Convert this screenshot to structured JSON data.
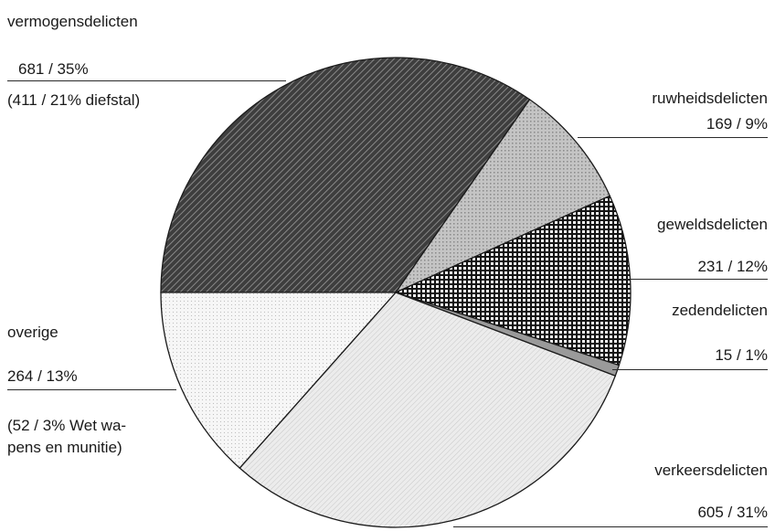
{
  "chart_data": {
    "type": "pie",
    "title": "",
    "slices": [
      {
        "label": "vermogensdelicten",
        "value_text": "681 / 35%",
        "note": "(411 / 21% diefstal)",
        "count": 681,
        "percent": 35,
        "pattern": "hatch-dark"
      },
      {
        "label": "ruwheidsdelicten",
        "value_text": "169 / 9%",
        "count": 169,
        "percent": 9,
        "pattern": "dots-light"
      },
      {
        "label": "geweldsdelicten",
        "value_text": "231 / 12%",
        "count": 231,
        "percent": 12,
        "pattern": "grid-dark"
      },
      {
        "label": "zedendelicten",
        "value_text": "15 / 1%",
        "count": 15,
        "percent": 1,
        "pattern": "solid-gray"
      },
      {
        "label": "verkeersdelicten",
        "value_text": "605 / 31%",
        "count": 605,
        "percent": 31,
        "pattern": "dots-fine"
      },
      {
        "label": "overige",
        "value_text": "264 / 13%",
        "note_line1": "(52 / 3% Wet wa-",
        "note_line2": "pens en munitie)",
        "count": 264,
        "percent": 13,
        "pattern": "dots-sparse"
      }
    ]
  }
}
